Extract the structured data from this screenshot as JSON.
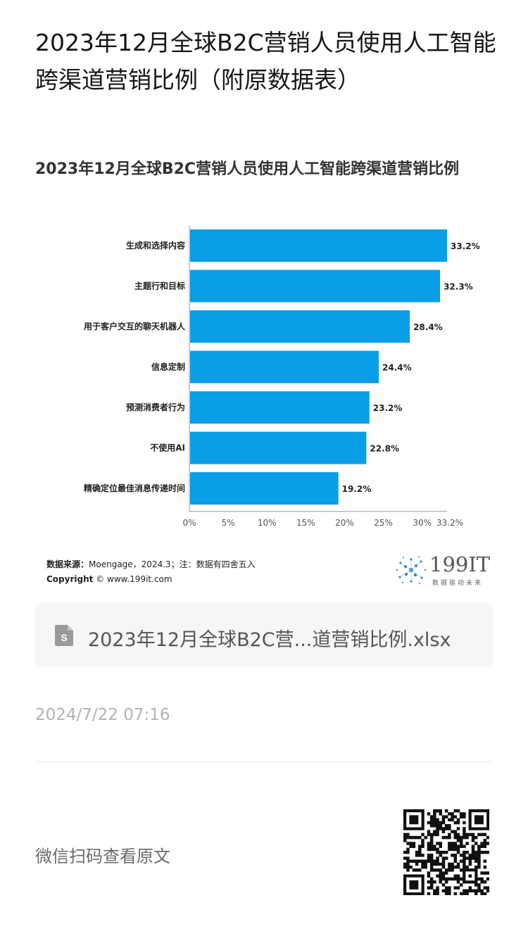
{
  "article": {
    "title": "2023年12月全球B2C营销人员使用人工智能跨渠道营销比例（附原数据表）"
  },
  "chart_data": {
    "type": "bar",
    "orientation": "horizontal",
    "title": "2023年12月全球B2C营销人员使用人工智能跨渠道营销比例",
    "categories": [
      "生成和选择内容",
      "主题行和目标",
      "用于客户交互的聊天机器人",
      "信息定制",
      "预测消费者行为",
      "不使用AI",
      "精确定位最佳消息传递时间"
    ],
    "values": [
      33.2,
      32.3,
      28.4,
      24.4,
      23.2,
      22.8,
      19.2
    ],
    "value_labels": [
      "33.2%",
      "32.3%",
      "28.4%",
      "24.4%",
      "23.2%",
      "22.8%",
      "19.2%"
    ],
    "x_ticks": [
      0,
      5,
      10,
      15,
      20,
      25,
      30,
      33.2
    ],
    "x_tick_labels": [
      "0%",
      "5%",
      "10%",
      "15%",
      "20%",
      "25%",
      "30%",
      "33.2%"
    ],
    "xlim": [
      0,
      33.2
    ],
    "bar_color": "#0a9ee6",
    "grid": false,
    "legend": "none"
  },
  "source": {
    "label": "数据来源：",
    "text": "Moengage，2024.3；注：数据有四舍五入",
    "copyright_label": "Copyright",
    "copyright_text": "© www.199it.com"
  },
  "logo": {
    "text": "199IT",
    "subtitle": "数据驱动未来"
  },
  "attachment": {
    "icon": "spreadsheet-file-icon",
    "filename": "2023年12月全球B2C营...道营销比例.xlsx"
  },
  "meta": {
    "timestamp": "2024/7/22 07:16"
  },
  "footer": {
    "scan_text": "微信扫码查看原文",
    "qr_icon": "qr-code-icon"
  }
}
